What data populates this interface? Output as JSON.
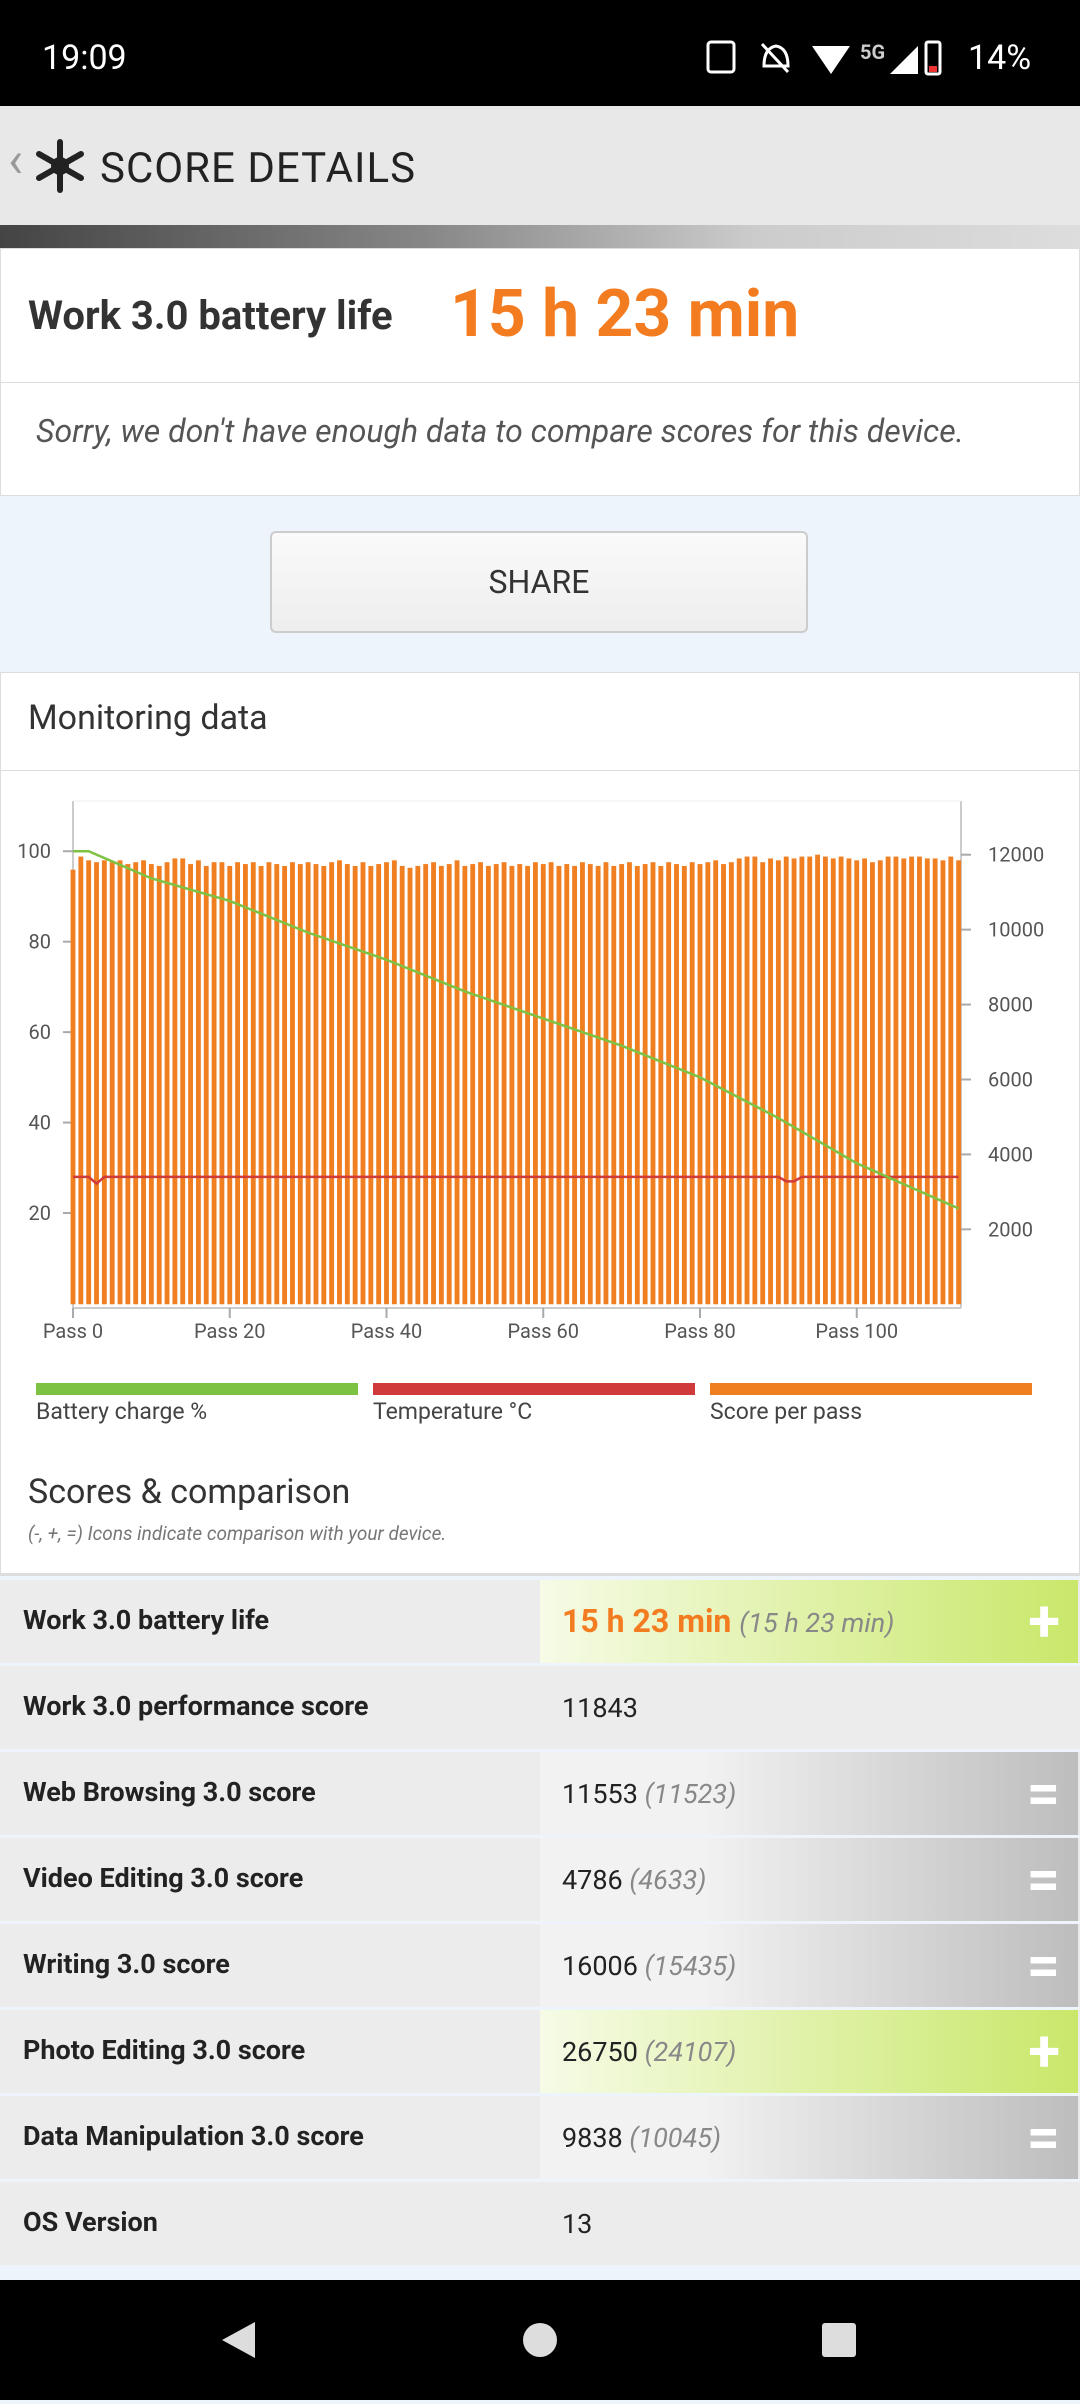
{
  "status_bar": {
    "time": "19:09",
    "network": "5G",
    "battery": "14%"
  },
  "header": {
    "title": "SCORE DETAILS"
  },
  "result": {
    "label": "Work 3.0 battery life",
    "value": "15 h 23 min",
    "note": "Sorry, we don't have enough data to compare scores for this device."
  },
  "share_button": "SHARE",
  "monitoring": {
    "title": "Monitoring data",
    "chart_data": {
      "type": "bar_line",
      "xlim": [
        0,
        113.3
      ],
      "xticks": [
        {
          "value": 0,
          "label": "Pass 0"
        },
        {
          "value": 20,
          "label": "Pass 20"
        },
        {
          "value": 40,
          "label": "Pass 40"
        },
        {
          "value": 60,
          "label": "Pass 60"
        },
        {
          "value": 80,
          "label": "Pass 80"
        },
        {
          "value": 100,
          "label": "Pass 100"
        }
      ],
      "ylim": [
        -1,
        110
      ],
      "yticks": [
        20,
        40,
        60,
        80,
        100
      ],
      "y2lim": [
        -100,
        13300
      ],
      "y2ticks": [
        2000,
        4000,
        6000,
        8000,
        10000,
        12000
      ],
      "series": [
        {
          "name": "Battery charge %",
          "type": "line",
          "color": "#7dc242",
          "x": [
            0,
            2,
            10,
            20,
            30,
            40,
            50,
            60,
            70,
            80,
            90,
            100,
            113
          ],
          "values": [
            100,
            100,
            94,
            89,
            82,
            76,
            69,
            63,
            57,
            50,
            41,
            31,
            21
          ]
        },
        {
          "name": "Temperature °C",
          "type": "line",
          "color": "#d03a3a",
          "x": [
            0,
            2,
            3,
            4,
            90,
            91,
            92,
            93,
            113
          ],
          "values": [
            28,
            28,
            26.5,
            28,
            28,
            27,
            27,
            28,
            28
          ]
        },
        {
          "name": "Score per pass",
          "type": "bar",
          "axis": "y2",
          "color": "#f07f22",
          "x": [
            0,
            1,
            2,
            3,
            4,
            5,
            6,
            7,
            8,
            9,
            10,
            11,
            12,
            13,
            14,
            15,
            16,
            17,
            18,
            19,
            20,
            21,
            22,
            23,
            24,
            25,
            26,
            27,
            28,
            29,
            30,
            31,
            32,
            33,
            34,
            35,
            36,
            37,
            38,
            39,
            40,
            41,
            42,
            43,
            44,
            45,
            46,
            47,
            48,
            49,
            50,
            51,
            52,
            53,
            54,
            55,
            56,
            57,
            58,
            59,
            60,
            61,
            62,
            63,
            64,
            65,
            66,
            67,
            68,
            69,
            70,
            71,
            72,
            73,
            74,
            75,
            76,
            77,
            78,
            79,
            80,
            81,
            82,
            83,
            84,
            85,
            86,
            87,
            88,
            89,
            90,
            91,
            92,
            93,
            94,
            95,
            96,
            97,
            98,
            99,
            100,
            101,
            102,
            103,
            104,
            105,
            106,
            107,
            108,
            109,
            110,
            111,
            112,
            113
          ],
          "values": [
            11600,
            11950,
            11850,
            11800,
            11850,
            11800,
            11850,
            11750,
            11800,
            11850,
            11750,
            11700,
            11800,
            11900,
            11900,
            11750,
            11850,
            11700,
            11800,
            11800,
            11700,
            11800,
            11750,
            11800,
            11700,
            11800,
            11750,
            11700,
            11800,
            11750,
            11800,
            11750,
            11700,
            11800,
            11850,
            11750,
            11700,
            11800,
            11700,
            11750,
            11800,
            11850,
            11700,
            11650,
            11700,
            11750,
            11800,
            11700,
            11750,
            11850,
            11700,
            11750,
            11800,
            11700,
            11750,
            11800,
            11700,
            11750,
            11700,
            11800,
            11750,
            11800,
            11700,
            11750,
            11700,
            11800,
            11750,
            11700,
            11800,
            11700,
            11750,
            11800,
            11700,
            11750,
            11800,
            11700,
            11800,
            11750,
            11700,
            11800,
            11750,
            11800,
            11850,
            11750,
            11800,
            11900,
            11950,
            11950,
            11800,
            11900,
            11850,
            11950,
            11900,
            11950,
            11950,
            12000,
            11950,
            11900,
            11950,
            11900,
            11850,
            11900,
            11800,
            11850,
            11950,
            11950,
            11900,
            11950,
            11950,
            11900,
            11900,
            11850,
            11950,
            11850
          ]
        }
      ]
    }
  },
  "scores": {
    "title": "Scores & comparison",
    "note": "(-, +, =) Icons indicate comparison with your device.",
    "rows": [
      {
        "label": "Work 3.0 battery life",
        "value": "15 h 23 min",
        "reference": "(15 h 23 min)",
        "indicator": "+"
      },
      {
        "label": "Work 3.0 performance score",
        "value": "11843"
      },
      {
        "label": "Web Browsing 3.0 score",
        "value": "11553",
        "reference": "(11523)",
        "indicator": "="
      },
      {
        "label": "Video Editing 3.0 score",
        "value": "4786",
        "reference": "(4633)",
        "indicator": "="
      },
      {
        "label": "Writing 3.0 score",
        "value": "16006",
        "reference": "(15435)",
        "indicator": "="
      },
      {
        "label": "Photo Editing 3.0 score",
        "value": "26750",
        "reference": "(24107)",
        "indicator": "+"
      },
      {
        "label": "Data Manipulation 3.0 score",
        "value": "9838",
        "reference": "(10045)",
        "indicator": "="
      },
      {
        "label": "OS Version",
        "value": "13"
      }
    ]
  }
}
